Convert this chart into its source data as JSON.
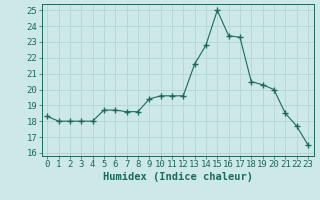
{
  "x": [
    0,
    1,
    2,
    3,
    4,
    5,
    6,
    7,
    8,
    9,
    10,
    11,
    12,
    13,
    14,
    15,
    16,
    17,
    18,
    19,
    20,
    21,
    22,
    23
  ],
  "y": [
    18.3,
    18.0,
    18.0,
    18.0,
    18.0,
    18.7,
    18.7,
    18.6,
    18.6,
    19.4,
    19.6,
    19.6,
    19.6,
    21.6,
    22.8,
    25.0,
    23.4,
    23.3,
    20.5,
    20.3,
    20.0,
    18.5,
    17.7,
    16.5
  ],
  "line_color": "#1a6b5a",
  "marker": "+",
  "marker_size": 4,
  "bg_color": "#cce8e8",
  "grid_color": "#b0d0d0",
  "xlabel": "Humidex (Indice chaleur)",
  "ylim": [
    15.8,
    25.4
  ],
  "xlim": [
    -0.5,
    23.5
  ],
  "yticks": [
    16,
    17,
    18,
    19,
    20,
    21,
    22,
    23,
    24,
    25
  ],
  "xticks": [
    0,
    1,
    2,
    3,
    4,
    5,
    6,
    7,
    8,
    9,
    10,
    11,
    12,
    13,
    14,
    15,
    16,
    17,
    18,
    19,
    20,
    21,
    22,
    23
  ],
  "tick_label_fontsize": 6.5,
  "xlabel_fontsize": 7.5
}
